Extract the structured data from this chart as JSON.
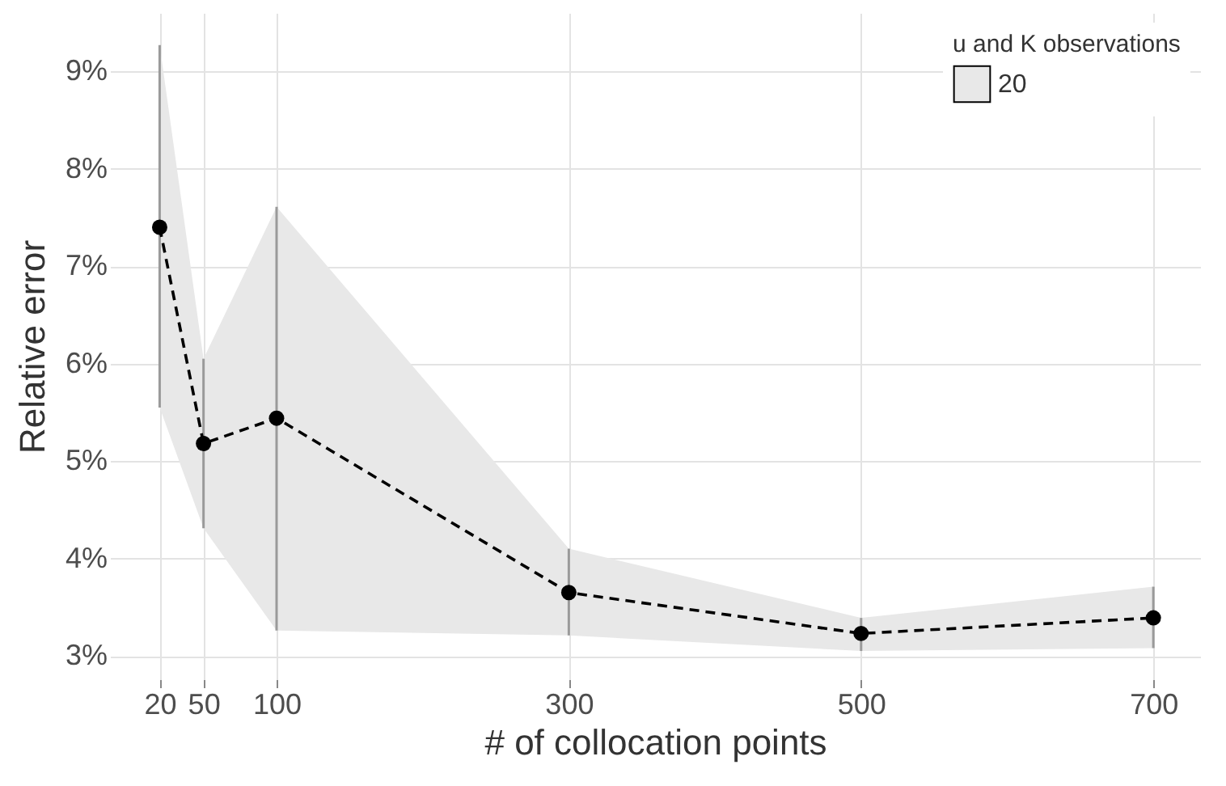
{
  "chart_data": {
    "type": "line",
    "xlabel": "# of collocation points",
    "ylabel": "Relative error",
    "legend_title": "u and K observations",
    "x": [
      20,
      50,
      100,
      300,
      500,
      700
    ],
    "series": [
      {
        "name": "20",
        "color": "#000000",
        "values": [
          7.4,
          5.18,
          5.44,
          3.65,
          3.23,
          3.39
        ],
        "lower": [
          5.55,
          4.31,
          3.26,
          3.21,
          3.05,
          3.08
        ],
        "upper": [
          9.27,
          6.05,
          7.61,
          4.1,
          3.39,
          3.71
        ],
        "errors": [
          [
            5.55,
            9.27
          ],
          [
            4.31,
            6.05
          ],
          [
            3.26,
            7.61
          ],
          [
            3.21,
            4.1
          ],
          [
            3.05,
            3.39
          ],
          [
            3.08,
            3.71
          ]
        ]
      }
    ],
    "xlim": [
      -14,
      732
    ],
    "xticks": [
      20,
      50,
      100,
      300,
      500,
      700
    ],
    "ylim": [
      2.76,
      9.6
    ],
    "yticks": [
      {
        "value": 3,
        "label": "3%"
      },
      {
        "value": 4,
        "label": "4%"
      },
      {
        "value": 5,
        "label": "5%"
      },
      {
        "value": 6,
        "label": "6%"
      },
      {
        "value": 7,
        "label": "7%"
      },
      {
        "value": 8,
        "label": "8%"
      },
      {
        "value": 9,
        "label": "9%"
      }
    ],
    "grid": true,
    "legend": "top right",
    "marker": "circle",
    "line_style": "dashed"
  }
}
